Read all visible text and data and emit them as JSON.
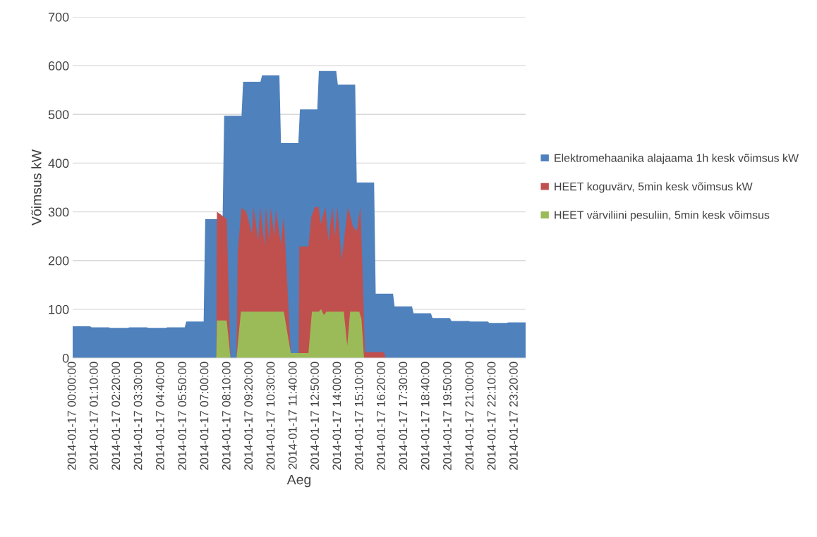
{
  "chart_data": {
    "type": "area",
    "xlabel": "Aeg",
    "ylabel": "Võimsus kW",
    "xlim": [
      "2014-01-17T00:00",
      "2014-01-17T23:55"
    ],
    "ylim": [
      0,
      700
    ],
    "yticks": [
      0,
      100,
      200,
      300,
      400,
      500,
      600,
      700
    ],
    "xticks": [
      {
        "value": "2014-01-17T00:00",
        "label": "2014-01-17 00:00:00"
      },
      {
        "value": "2014-01-17T01:10",
        "label": "2014-01-17 01:10:00"
      },
      {
        "value": "2014-01-17T02:20",
        "label": "2014-01-17 02:20:00"
      },
      {
        "value": "2014-01-17T03:30",
        "label": "2014-01-17 03:30:00"
      },
      {
        "value": "2014-01-17T04:40",
        "label": "2014-01-17 04:40:00"
      },
      {
        "value": "2014-01-17T05:50",
        "label": "2014-01-17 05:50:00"
      },
      {
        "value": "2014-01-17T07:00",
        "label": "2014-01-17 07:00:00"
      },
      {
        "value": "2014-01-17T08:10",
        "label": "2014-01-17 08:10:00"
      },
      {
        "value": "2014-01-17T09:20",
        "label": "2014-01-17 09:20:00"
      },
      {
        "value": "2014-01-17T10:30",
        "label": "2014-01-17 10:30:00"
      },
      {
        "value": "2014-01-17T11:40",
        "label": "2014-01-17 11:40:00"
      },
      {
        "value": "2014-01-17T12:50",
        "label": "2014-01-17 12:50:00"
      },
      {
        "value": "2014-01-17T14:00",
        "label": "2014-01-17 14:00:00"
      },
      {
        "value": "2014-01-17T15:10",
        "label": "2014-01-17 15:10:00"
      },
      {
        "value": "2014-01-17T16:20",
        "label": "2014-01-17 16:20:00"
      },
      {
        "value": "2014-01-17T17:30",
        "label": "2014-01-17 17:30:00"
      },
      {
        "value": "2014-01-17T18:40",
        "label": "2014-01-17 18:40:00"
      },
      {
        "value": "2014-01-17T19:50",
        "label": "2014-01-17 19:50:00"
      },
      {
        "value": "2014-01-17T21:00",
        "label": "2014-01-17 21:00:00"
      },
      {
        "value": "2014-01-17T22:10",
        "label": "2014-01-17 22:10:00"
      },
      {
        "value": "2014-01-17T23:20",
        "label": "2014-01-17 23:20:00"
      }
    ],
    "grid": "y",
    "legend": "right",
    "series": [
      {
        "name": "Elektromehaanika alajaama 1h kesk võimsus kW",
        "color": "#4f81bd",
        "x": [
          "2014-01-17T00:00",
          "2014-01-17T00:55",
          "2014-01-17T01:00",
          "2014-01-17T01:55",
          "2014-01-17T02:00",
          "2014-01-17T02:55",
          "2014-01-17T03:00",
          "2014-01-17T03:55",
          "2014-01-17T04:00",
          "2014-01-17T04:55",
          "2014-01-17T05:00",
          "2014-01-17T05:55",
          "2014-01-17T06:00",
          "2014-01-17T06:55",
          "2014-01-17T07:00",
          "2014-01-17T07:55",
          "2014-01-17T08:00",
          "2014-01-17T08:55",
          "2014-01-17T09:00",
          "2014-01-17T09:55",
          "2014-01-17T10:00",
          "2014-01-17T10:55",
          "2014-01-17T11:00",
          "2014-01-17T11:55",
          "2014-01-17T12:00",
          "2014-01-17T12:55",
          "2014-01-17T13:00",
          "2014-01-17T13:55",
          "2014-01-17T14:00",
          "2014-01-17T14:55",
          "2014-01-17T15:00",
          "2014-01-17T15:55",
          "2014-01-17T16:00",
          "2014-01-17T16:55",
          "2014-01-17T17:00",
          "2014-01-17T17:55",
          "2014-01-17T18:00",
          "2014-01-17T18:55",
          "2014-01-17T19:00",
          "2014-01-17T19:55",
          "2014-01-17T20:00",
          "2014-01-17T20:55",
          "2014-01-17T21:00",
          "2014-01-17T21:55",
          "2014-01-17T22:00",
          "2014-01-17T22:55",
          "2014-01-17T23:00",
          "2014-01-17T23:55"
        ],
        "values": [
          65,
          65,
          63,
          63,
          62,
          62,
          63,
          63,
          62,
          62,
          63,
          63,
          75,
          75,
          285,
          285,
          497,
          497,
          567,
          567,
          580,
          580,
          441,
          441,
          510,
          510,
          589,
          589,
          561,
          561,
          360,
          360,
          132,
          132,
          106,
          106,
          92,
          92,
          82,
          82,
          76,
          76,
          75,
          75,
          72,
          72,
          73,
          73
        ]
      },
      {
        "name": "HEET koguvärv, 5min kesk võimsus kW",
        "color": "#c0504d",
        "x": [
          "2014-01-17T00:00",
          "2014-01-17T07:35",
          "2014-01-17T07:37",
          "2014-01-17T07:48",
          "2014-01-17T08:08",
          "2014-01-17T08:20",
          "2014-01-17T08:39",
          "2014-01-17T08:43",
          "2014-01-17T08:55",
          "2014-01-17T09:10",
          "2014-01-17T09:28",
          "2014-01-17T09:33",
          "2014-01-17T09:48",
          "2014-01-17T09:54",
          "2014-01-17T10:08",
          "2014-01-17T10:12",
          "2014-01-17T10:23",
          "2014-01-17T10:27",
          "2014-01-17T10:39",
          "2014-01-17T10:44",
          "2014-01-17T10:59",
          "2014-01-17T11:09",
          "2014-01-17T11:31",
          "2014-01-17T11:56",
          "2014-01-17T11:58",
          "2014-01-17T12:27",
          "2014-01-17T12:36",
          "2014-01-17T12:48",
          "2014-01-17T12:59",
          "2014-01-17T13:06",
          "2014-01-17T13:21",
          "2014-01-17T13:30",
          "2014-01-17T13:43",
          "2014-01-17T13:51",
          "2014-01-17T13:59",
          "2014-01-17T14:12",
          "2014-01-17T14:32",
          "2014-01-17T14:48",
          "2014-01-17T15:00",
          "2014-01-17T15:12",
          "2014-01-17T15:26",
          "2014-01-17T16:26",
          "2014-01-17T16:32",
          "2014-01-17T23:55"
        ],
        "values": [
          0,
          0,
          300,
          295,
          285,
          0,
          0,
          218,
          308,
          300,
          255,
          310,
          240,
          310,
          230,
          310,
          240,
          310,
          250,
          305,
          235,
          291,
          10,
          10,
          229,
          229,
          290,
          310,
          310,
          275,
          310,
          240,
          310,
          250,
          310,
          200,
          310,
          270,
          260,
          310,
          12,
          12,
          0,
          0
        ]
      },
      {
        "name": "HEET värviliini pesuliin, 5min kesk võimsus",
        "color": "#9bbb59",
        "x": [
          "2014-01-17T00:00",
          "2014-01-17T07:35",
          "2014-01-17T07:37",
          "2014-01-17T08:08",
          "2014-01-17T08:20",
          "2014-01-17T08:39",
          "2014-01-17T08:53",
          "2014-01-17T11:09",
          "2014-01-17T11:31",
          "2014-01-17T12:27",
          "2014-01-17T12:38",
          "2014-01-17T13:00",
          "2014-01-17T13:07",
          "2014-01-17T13:16",
          "2014-01-17T13:24",
          "2014-01-17T14:19",
          "2014-01-17T14:30",
          "2014-01-17T14:39",
          "2014-01-17T15:08",
          "2014-01-17T15:15",
          "2014-01-17T15:23",
          "2014-01-17T23:55"
        ],
        "values": [
          0,
          0,
          77,
          77,
          0,
          0,
          95,
          95,
          10,
          10,
          95,
          95,
          100,
          88,
          95,
          95,
          25,
          95,
          95,
          80,
          0,
          0
        ]
      }
    ]
  }
}
